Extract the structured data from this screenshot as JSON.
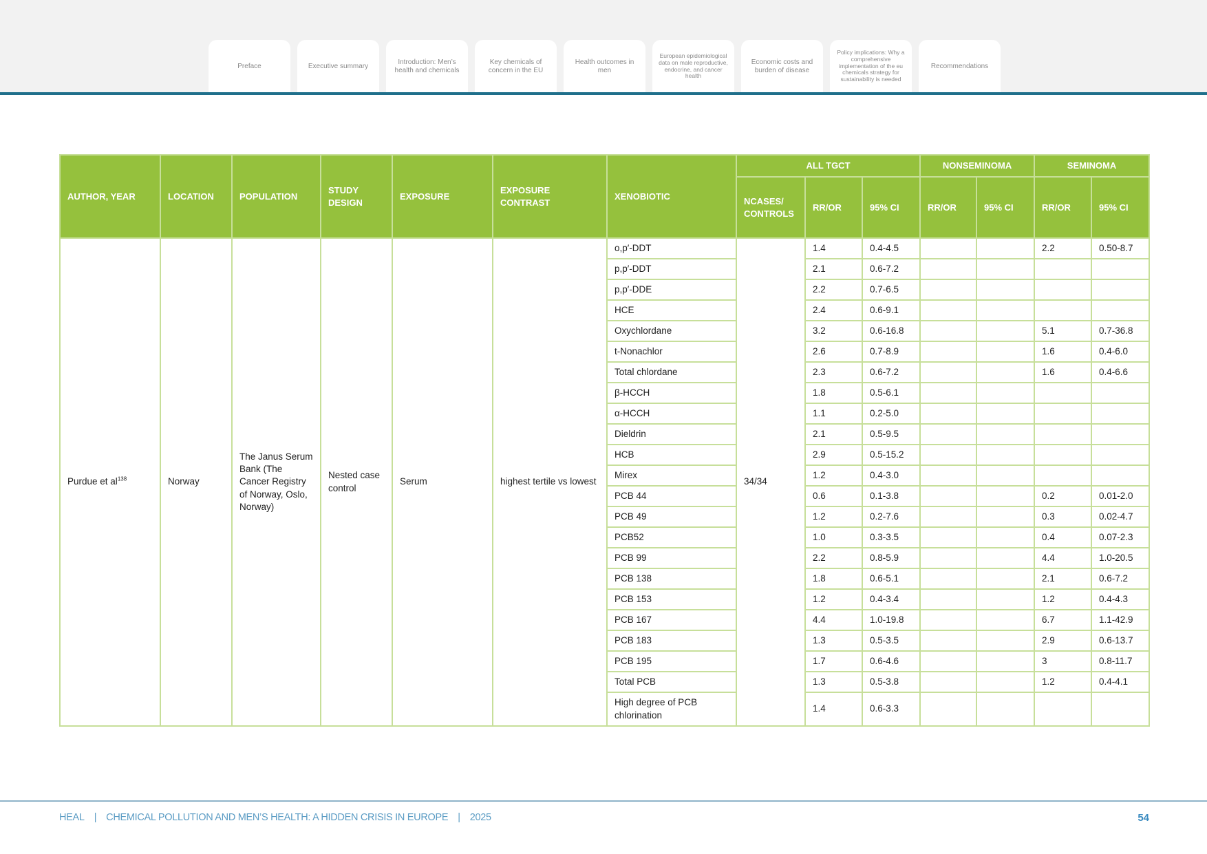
{
  "nav": {
    "tabs": [
      "Preface",
      "Executive summary",
      "Introduction: Men’s health and chemicals",
      "Key chemicals of concern in the EU",
      "Health outcomes in men",
      "European epidemiological data on male reproductive, endocrine, and cancer health",
      "Economic costs and burden of disease",
      "Policy implications: Why a comprehensive implementation of the eu chemicals strategy for sustainability is needed",
      "Recommendations"
    ]
  },
  "table": {
    "headers": {
      "author_year": "AUTHOR, YEAR",
      "location": "LOCATION",
      "population": "POPULATION",
      "study_design": "STUDY DESIGN",
      "exposure": "EXPOSURE",
      "exposure_contrast": "EXPOSURE CONTRAST",
      "xenobiotic": "XENOBIOTIC",
      "group_all_tgct": "ALL TGCT",
      "group_nonseminoma": "NONSEMINOMA",
      "group_seminoma": "SEMINOMA",
      "ncases_controls": "NCASES/ CONTROLS",
      "rr_or": "RR/OR",
      "ci": "95% CI"
    },
    "study": {
      "author": "Purdue et al",
      "ref": "138",
      "location": "Norway",
      "population": "The Janus Serum Bank (The Cancer Registry of Norway, Oslo, Norway)",
      "study_design": "Nested case control",
      "exposure": "Serum",
      "exposure_contrast": "highest tertile vs lowest",
      "ncases_controls": "34/34"
    },
    "rows": [
      {
        "xenobiotic": "o,p′-DDT",
        "tgct_rr": "1.4",
        "tgct_ci": "0.4-4.5",
        "non_rr": "",
        "non_ci": "",
        "sem_rr": "2.2",
        "sem_ci": "0.50-8.7"
      },
      {
        "xenobiotic": "p,p′-DDT",
        "tgct_rr": "2.1",
        "tgct_ci": "0.6-7.2",
        "non_rr": "",
        "non_ci": "",
        "sem_rr": "",
        "sem_ci": ""
      },
      {
        "xenobiotic": "p,p′-DDE",
        "tgct_rr": "2.2",
        "tgct_ci": "0.7-6.5",
        "non_rr": "",
        "non_ci": "",
        "sem_rr": "",
        "sem_ci": ""
      },
      {
        "xenobiotic": "HCE",
        "tgct_rr": "2.4",
        "tgct_ci": "0.6-9.1",
        "non_rr": "",
        "non_ci": "",
        "sem_rr": "",
        "sem_ci": ""
      },
      {
        "xenobiotic": "Oxychlordane",
        "tgct_rr": "3.2",
        "tgct_ci": "0.6-16.8",
        "non_rr": "",
        "non_ci": "",
        "sem_rr": "5.1",
        "sem_ci": "0.7-36.8"
      },
      {
        "xenobiotic": "t-Nonachlor",
        "tgct_rr": "2.6",
        "tgct_ci": "0.7-8.9",
        "non_rr": "",
        "non_ci": "",
        "sem_rr": "1.6",
        "sem_ci": "0.4-6.0"
      },
      {
        "xenobiotic": "Total chlordane",
        "tgct_rr": "2.3",
        "tgct_ci": "0.6-7.2",
        "non_rr": "",
        "non_ci": "",
        "sem_rr": "1.6",
        "sem_ci": "0.4-6.6"
      },
      {
        "xenobiotic": "β-HCCH",
        "tgct_rr": "1.8",
        "tgct_ci": "0.5-6.1",
        "non_rr": "",
        "non_ci": "",
        "sem_rr": "",
        "sem_ci": ""
      },
      {
        "xenobiotic": "α-HCCH",
        "tgct_rr": "1.1",
        "tgct_ci": "0.2-5.0",
        "non_rr": "",
        "non_ci": "",
        "sem_rr": "",
        "sem_ci": ""
      },
      {
        "xenobiotic": "Dieldrin",
        "tgct_rr": "2.1",
        "tgct_ci": "0.5-9.5",
        "non_rr": "",
        "non_ci": "",
        "sem_rr": "",
        "sem_ci": ""
      },
      {
        "xenobiotic": "HCB",
        "tgct_rr": "2.9",
        "tgct_ci": "0.5-15.2",
        "non_rr": "",
        "non_ci": "",
        "sem_rr": "",
        "sem_ci": ""
      },
      {
        "xenobiotic": "Mirex",
        "tgct_rr": "1.2",
        "tgct_ci": "0.4-3.0",
        "non_rr": "",
        "non_ci": "",
        "sem_rr": "",
        "sem_ci": ""
      },
      {
        "xenobiotic": "PCB 44",
        "tgct_rr": "0.6",
        "tgct_ci": "0.1-3.8",
        "non_rr": "",
        "non_ci": "",
        "sem_rr": "0.2",
        "sem_ci": "0.01-2.0"
      },
      {
        "xenobiotic": "PCB 49",
        "tgct_rr": "1.2",
        "tgct_ci": "0.2-7.6",
        "non_rr": "",
        "non_ci": "",
        "sem_rr": "0.3",
        "sem_ci": "0.02-4.7"
      },
      {
        "xenobiotic": "PCB52",
        "tgct_rr": "1.0",
        "tgct_ci": "0.3-3.5",
        "non_rr": "",
        "non_ci": "",
        "sem_rr": "0.4",
        "sem_ci": "0.07-2.3"
      },
      {
        "xenobiotic": "PCB 99",
        "tgct_rr": "2.2",
        "tgct_ci": "0.8-5.9",
        "non_rr": "",
        "non_ci": "",
        "sem_rr": "4.4",
        "sem_ci": "1.0-20.5"
      },
      {
        "xenobiotic": "PCB 138",
        "tgct_rr": "1.8",
        "tgct_ci": "0.6-5.1",
        "non_rr": "",
        "non_ci": "",
        "sem_rr": "2.1",
        "sem_ci": "0.6-7.2"
      },
      {
        "xenobiotic": "PCB 153",
        "tgct_rr": "1.2",
        "tgct_ci": "0.4-3.4",
        "non_rr": "",
        "non_ci": "",
        "sem_rr": "1.2",
        "sem_ci": "0.4-4.3"
      },
      {
        "xenobiotic": "PCB 167",
        "tgct_rr": "4.4",
        "tgct_ci": "1.0-19.8",
        "non_rr": "",
        "non_ci": "",
        "sem_rr": "6.7",
        "sem_ci": "1.1-42.9"
      },
      {
        "xenobiotic": "PCB 183",
        "tgct_rr": "1.3",
        "tgct_ci": "0.5-3.5",
        "non_rr": "",
        "non_ci": "",
        "sem_rr": "2.9",
        "sem_ci": "0.6-13.7"
      },
      {
        "xenobiotic": "PCB 195",
        "tgct_rr": "1.7",
        "tgct_ci": "0.6-4.6",
        "non_rr": "",
        "non_ci": "",
        "sem_rr": "3",
        "sem_ci": "0.8-11.7"
      },
      {
        "xenobiotic": "Total PCB",
        "tgct_rr": "1.3",
        "tgct_ci": "0.5-3.8",
        "non_rr": "",
        "non_ci": "",
        "sem_rr": "1.2",
        "sem_ci": "0.4-4.1"
      },
      {
        "xenobiotic": "High degree of PCB chlorination",
        "tgct_rr": "1.4",
        "tgct_ci": "0.6-3.3",
        "non_rr": "",
        "non_ci": "",
        "sem_rr": "",
        "sem_ci": ""
      }
    ]
  },
  "footer": {
    "org": "HEAL",
    "title": "CHEMICAL POLLUTION AND MEN’S HEALTH: A HIDDEN CRISIS IN EUROPE",
    "year": "2025",
    "separator": "|",
    "page": "54"
  },
  "colors": {
    "header_green": "#95c13d",
    "border_green": "#c7df9a",
    "nav_blue": "#1f6f8b",
    "footer_blue": "#5b9cc4"
  }
}
